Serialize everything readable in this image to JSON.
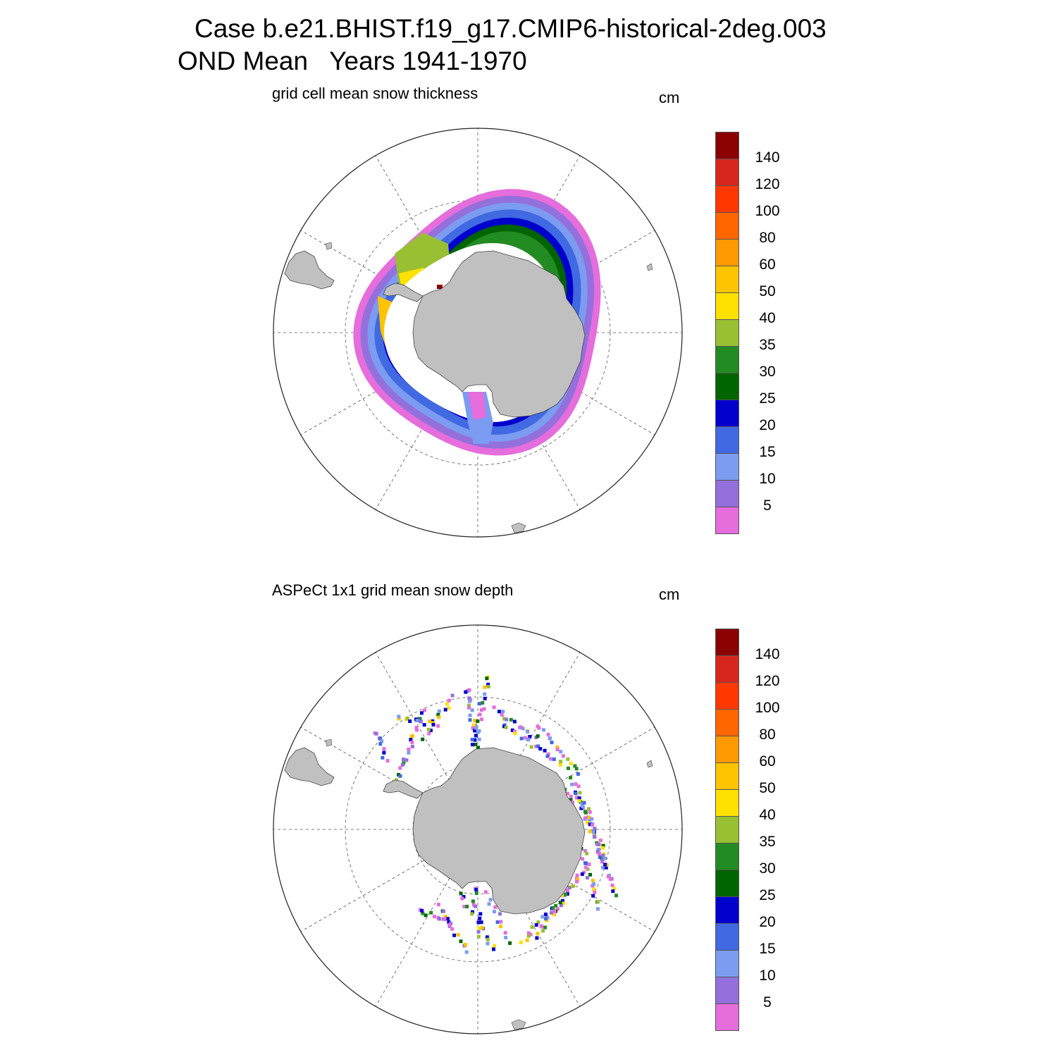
{
  "title_line1": "Case b.e21.BHIST.f19_g17.CMIP6-historical-2deg.003",
  "title_line2": "OND Mean   Years 1941-1970",
  "panels": [
    {
      "title": "grid cell mean snow thickness",
      "units": "cm",
      "dataset": "model"
    },
    {
      "title": "ASPeCt 1x1 grid mean snow depth",
      "units": "cm",
      "dataset": "obs"
    }
  ],
  "colorbar": {
    "colors": [
      "#8b0000",
      "#d7261e",
      "#ff3800",
      "#ff6600",
      "#ff9900",
      "#ffc400",
      "#ffe100",
      "#99bf33",
      "#228b22",
      "#006400",
      "#0000cd",
      "#4169e1",
      "#7b9cf1",
      "#9370db",
      "#e56ddc"
    ],
    "labels": [
      "140",
      "120",
      "100",
      "80",
      "60",
      "50",
      "40",
      "35",
      "30",
      "25",
      "20",
      "15",
      "10",
      "5"
    ]
  },
  "colors": {
    "land": "#c0c0c0",
    "coast": "#444444",
    "grid": "#555555"
  }
}
